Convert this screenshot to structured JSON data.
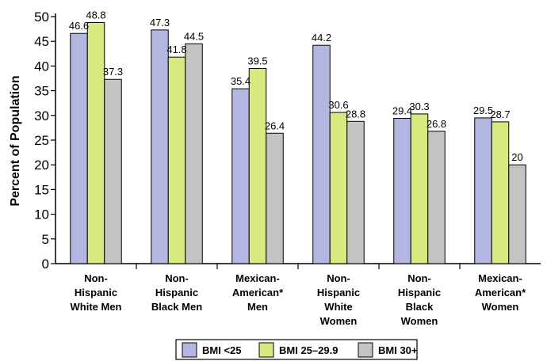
{
  "chart_data": {
    "type": "bar",
    "ylabel": "Percent of Population",
    "xlabel": "",
    "title": "",
    "ylim": [
      0,
      50
    ],
    "yticks": [
      "0",
      "5",
      "10",
      "15",
      "20",
      "25",
      "30",
      "35",
      "40",
      "45",
      "50"
    ],
    "grid": false,
    "legend_position": "bottom",
    "categories": [
      [
        "Non-",
        "Hispanic",
        "White Men"
      ],
      [
        "Non-",
        "Hispanic",
        "Black Men"
      ],
      [
        "Mexican-",
        "American*",
        "Men"
      ],
      [
        "Non-",
        "Hispanic",
        "White",
        "Women"
      ],
      [
        "Non-",
        "Hispanic",
        "Black",
        "Women"
      ],
      [
        "Mexican-",
        "American*",
        "Women"
      ]
    ],
    "series": [
      {
        "name": "BMI <25",
        "color": "#b3b6e0",
        "values": [
          46.6,
          47.3,
          35.4,
          44.2,
          29.4,
          29.5
        ],
        "labels": [
          "46.6",
          "47.3",
          "35.4",
          "44.2",
          "29.4",
          "29.5"
        ]
      },
      {
        "name": "BMI 25–29.9",
        "color": "#d7ea80",
        "values": [
          48.8,
          41.8,
          39.5,
          30.6,
          30.3,
          28.7
        ],
        "labels": [
          "48.8",
          "41.8",
          "39.5",
          "30.6",
          "30.3",
          "28.7"
        ]
      },
      {
        "name": "BMI 30+",
        "color": "#c3c3c3",
        "values": [
          37.3,
          44.5,
          26.4,
          28.8,
          26.8,
          20
        ],
        "labels": [
          "37.3",
          "44.5",
          "26.4",
          "28.8",
          "26.8",
          "20"
        ]
      }
    ]
  }
}
